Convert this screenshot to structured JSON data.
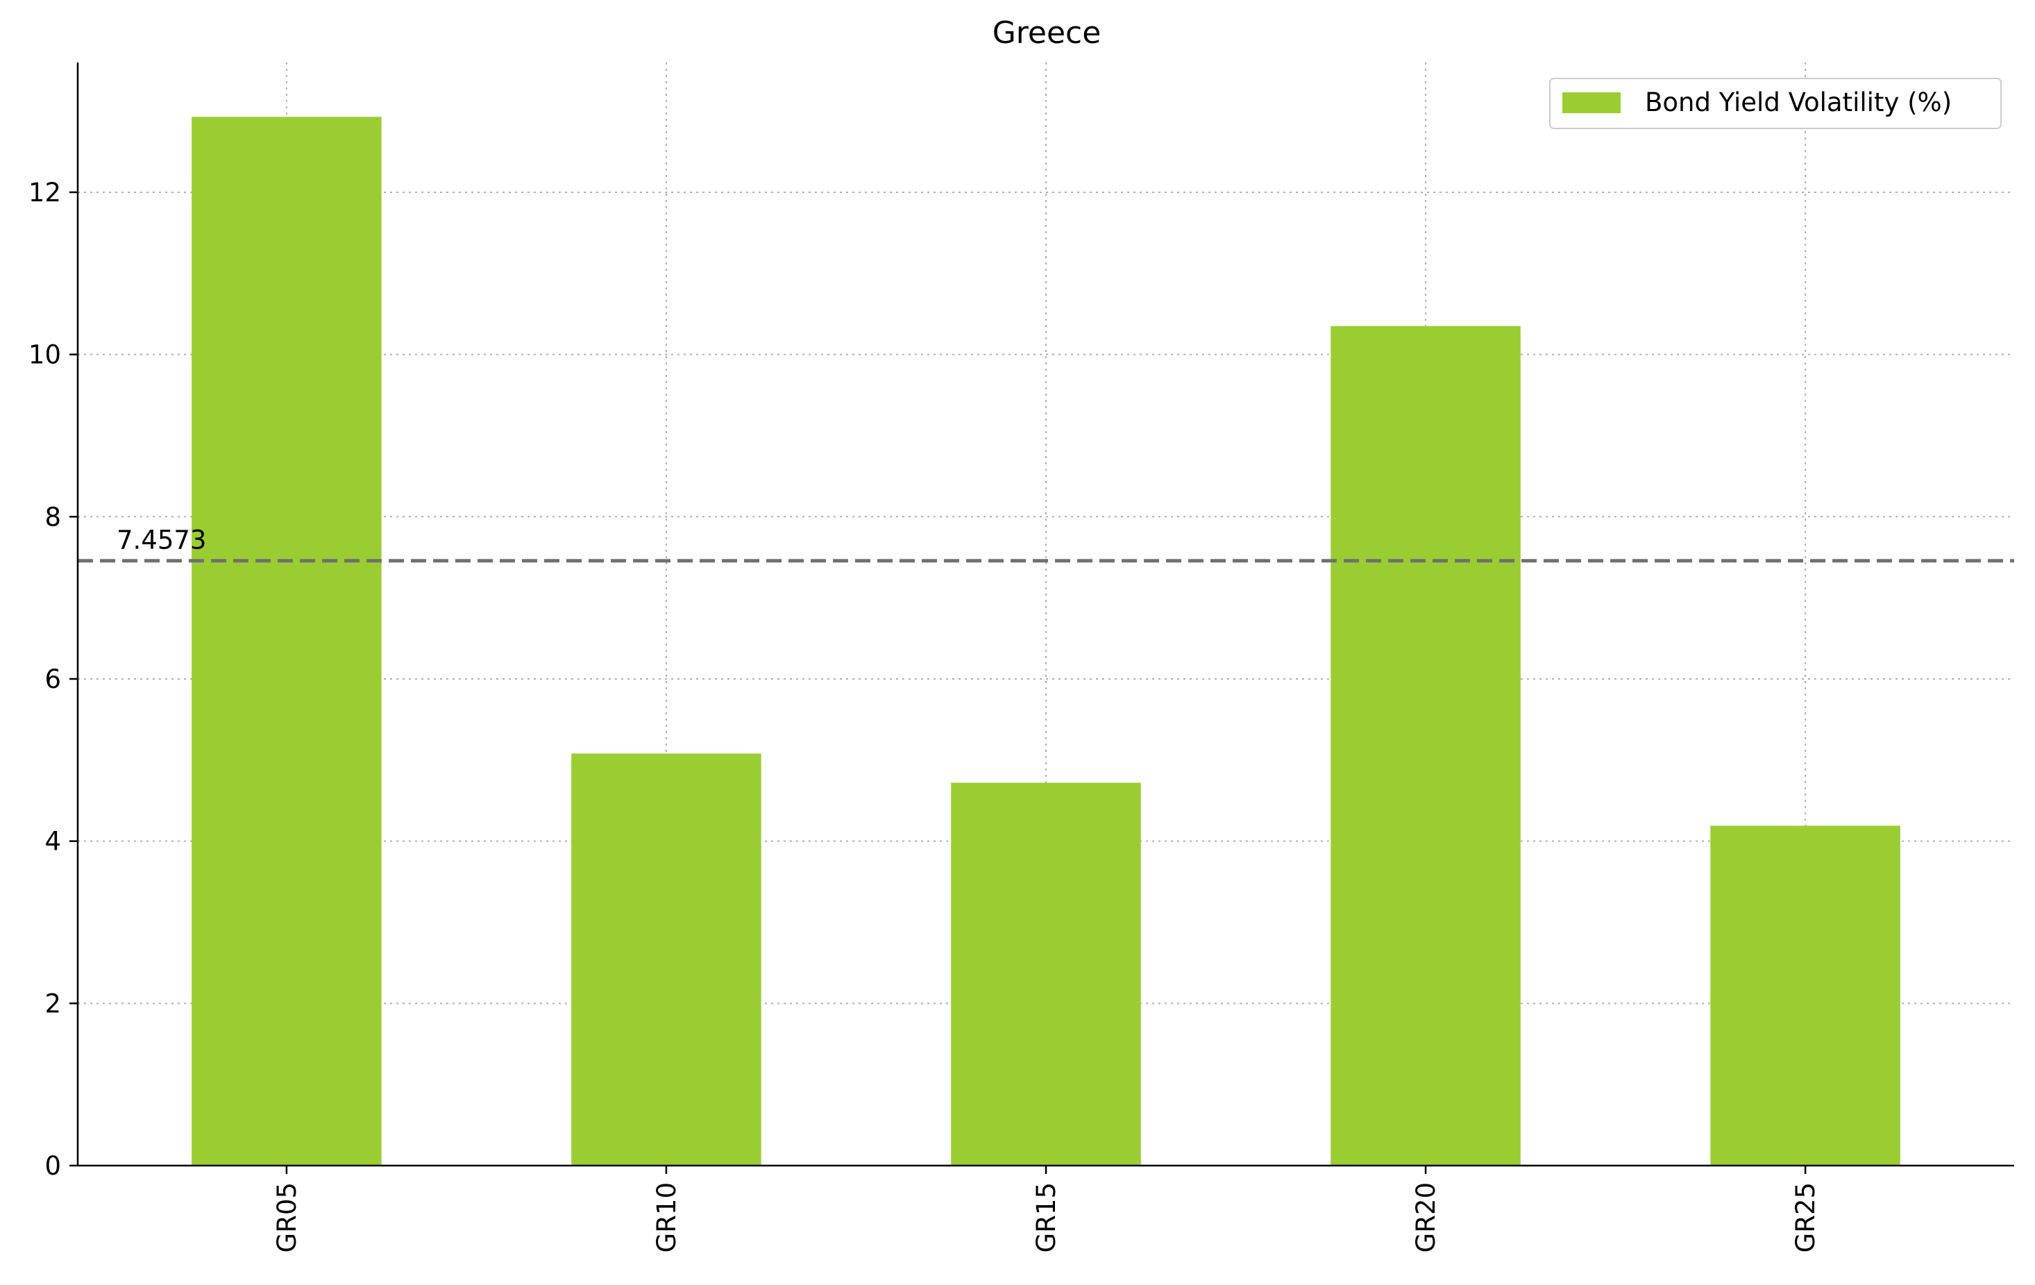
{
  "chart_data": {
    "type": "bar",
    "title": "Greece",
    "xlabel": "",
    "ylabel": "",
    "categories": [
      "GR05",
      "GR10",
      "GR15",
      "GR20",
      "GR25"
    ],
    "series": [
      {
        "name": "Bond Yield Volatility (%)",
        "values": [
          12.93,
          5.08,
          4.72,
          10.35,
          4.19
        ],
        "color": "#9acd32"
      }
    ],
    "ylim": [
      0,
      13.6
    ],
    "yticks": [
      0,
      2,
      4,
      6,
      8,
      10,
      12
    ],
    "reference_line": {
      "value": 7.4573,
      "label": "7.4573",
      "style": "dashed",
      "color": "#707070"
    },
    "grid": true,
    "legend": "top-right"
  }
}
